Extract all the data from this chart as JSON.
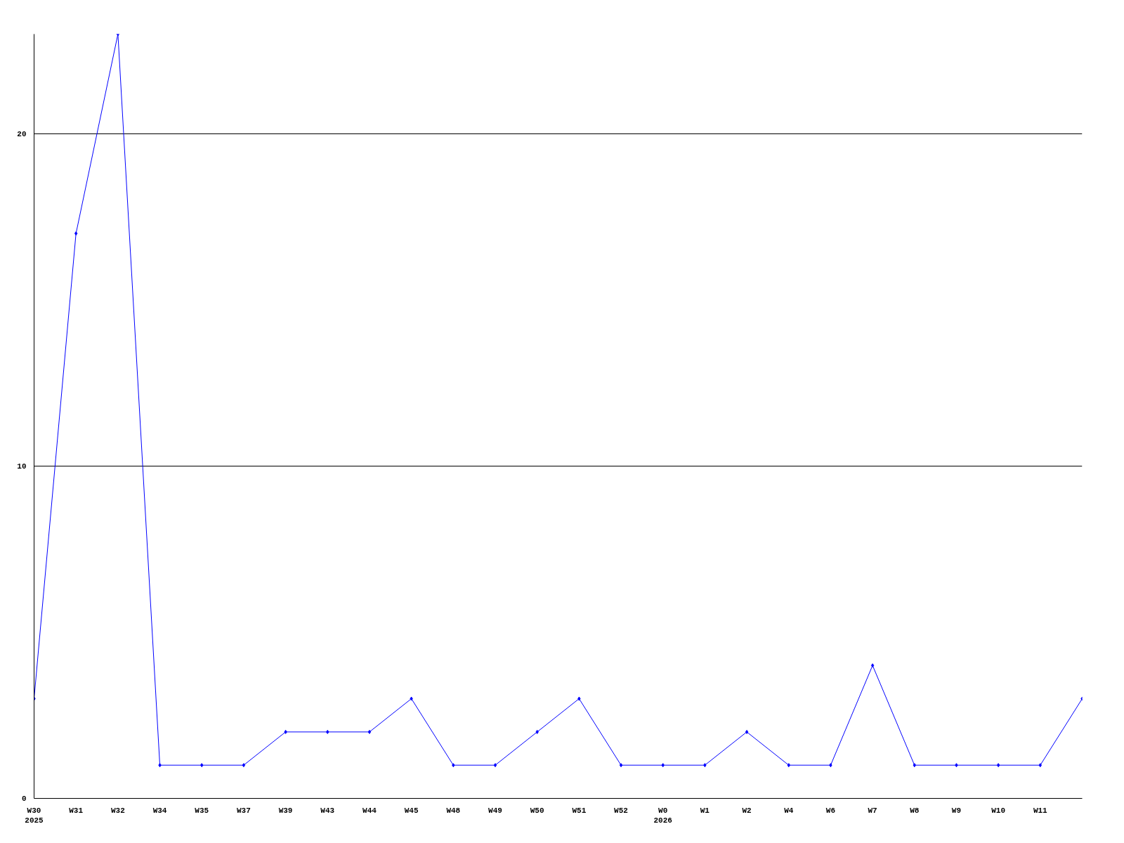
{
  "chart_data": {
    "type": "line",
    "categories": [
      "W30\n2025",
      "W31",
      "W32",
      "W34",
      "W35",
      "W37",
      "W39",
      "W43",
      "W44",
      "W45",
      "W48",
      "W49",
      "W50",
      "W51",
      "W52",
      "W0\n2026",
      "W1",
      "W2",
      "W4",
      "W6",
      "W7",
      "W8",
      "W9",
      "W10",
      "W11",
      null
    ],
    "series": [
      {
        "color": "#0000ff",
        "values": [
          3,
          17,
          23,
          1,
          1,
          1,
          2,
          2,
          2,
          3,
          1,
          1,
          2,
          3,
          1,
          1,
          1,
          2,
          1,
          1,
          4,
          1,
          1,
          1,
          1,
          3
        ]
      }
    ],
    "ylim": [
      0,
      23
    ],
    "yticks": [
      0,
      10,
      20
    ],
    "grid": "y",
    "marker": "diamond",
    "line_style": "solid"
  }
}
